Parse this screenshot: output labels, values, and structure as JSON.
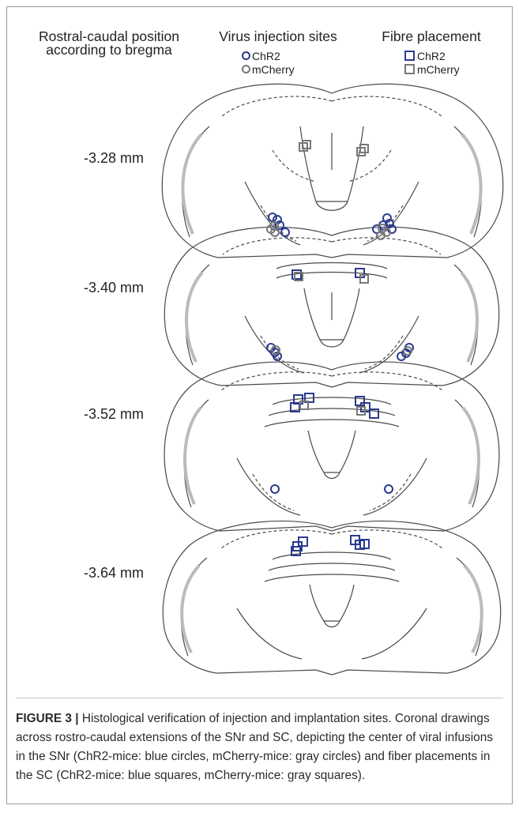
{
  "headers": {
    "rostral_caudal": "Rostral-caudal position according to bregma",
    "virus": "Virus injection sites",
    "fibre": "Fibre placement"
  },
  "legend_virus": [
    {
      "label": "ChR2",
      "color": "#2b3a8f"
    },
    {
      "label": "mCherry",
      "color": "#777777"
    }
  ],
  "legend_fibre": [
    {
      "label": "ChR2",
      "color": "#2b3a8f"
    },
    {
      "label": "mCherry",
      "color": "#777777"
    }
  ],
  "levels": [
    "-3.28 mm",
    "-3.40 mm",
    "-3.52 mm",
    "-3.64 mm"
  ],
  "colors": {
    "chr2": "#2b3a8f",
    "mcherry": "#777777",
    "outline": "#4a4a4a"
  },
  "caption": {
    "label": "FIGURE 3 |",
    "text": " Histological verification of injection and implantation sites. Coronal drawings across rostro-caudal extensions of the SNr and SC, depicting the center of viral infusions in the SNr (ChR2-mice: blue circles, mCherry-mice: gray circles) and fiber placements in the SC (ChR2-mice: blue squares, mCherry-mice: gray squares)."
  }
}
